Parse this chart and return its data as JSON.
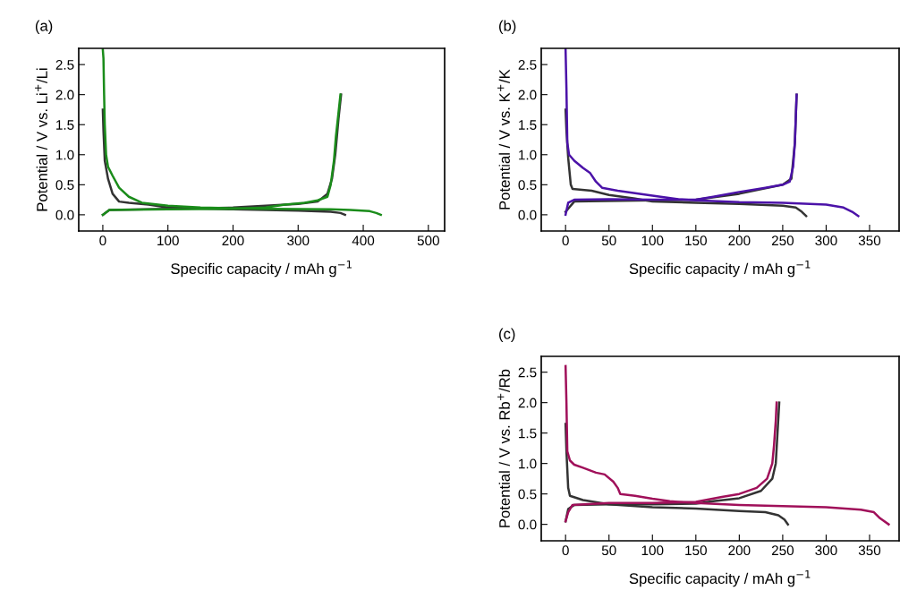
{
  "chart_data": [
    {
      "type": "line",
      "title": "(a)",
      "xlabel": "Specific capacity / mAh g$^{−1}$",
      "ylabel": "Potential / V vs. Li$^{+}$/Li",
      "xlim": [
        -37,
        525
      ],
      "ylim": [
        -0.27,
        2.77
      ],
      "xticks": [
        0,
        100,
        200,
        300,
        400,
        500
      ],
      "yticks": [
        {
          "value": 0,
          "label": "0.0"
        },
        {
          "value": 0.5,
          "label": "0.5"
        },
        {
          "value": 1,
          "label": "1.0"
        },
        {
          "value": 1.5,
          "label": "1.5"
        },
        {
          "value": 2,
          "label": "2.0"
        },
        {
          "value": 2.5,
          "label": "2.5"
        }
      ],
      "grid": false,
      "series": [
        {
          "color": "#333333",
          "x": [
            0,
            1,
            3,
            8,
            15,
            25,
            40,
            70,
            100,
            200,
            300,
            350,
            365,
            372
          ],
          "values": [
            1.75,
            1.4,
            0.9,
            0.6,
            0.35,
            0.22,
            0.2,
            0.17,
            0.12,
            0.09,
            0.07,
            0.05,
            0.03,
            0.0
          ]
        },
        {
          "color": "#333333",
          "x": [
            0,
            10,
            100,
            200,
            300,
            330,
            345,
            352,
            357,
            362,
            366
          ],
          "values": [
            0.0,
            0.08,
            0.1,
            0.12,
            0.18,
            0.22,
            0.35,
            0.6,
            1.0,
            1.6,
            2.0
          ]
        },
        {
          "color": "#1a8c1a",
          "x": [
            0,
            1,
            2,
            3,
            5,
            8,
            15,
            25,
            40,
            60,
            100,
            150,
            250,
            350,
            380,
            410,
            420,
            427
          ],
          "values": [
            2.75,
            2.6,
            2.0,
            1.5,
            1.0,
            0.8,
            0.65,
            0.45,
            0.3,
            0.2,
            0.15,
            0.12,
            0.1,
            0.09,
            0.08,
            0.06,
            0.03,
            0.0
          ]
        },
        {
          "color": "#1a8c1a",
          "x": [
            0,
            10,
            100,
            200,
            250,
            280,
            310,
            330,
            345,
            350,
            355,
            358,
            362,
            365
          ],
          "values": [
            0.0,
            0.08,
            0.09,
            0.1,
            0.12,
            0.17,
            0.2,
            0.24,
            0.3,
            0.5,
            0.9,
            1.3,
            1.7,
            2.0
          ]
        }
      ]
    },
    {
      "type": "line",
      "title": "(b)",
      "xlabel": "Specific capacity / mAh g$^{−1}$",
      "ylabel": "Potential / V vs. K$^{+}$/K",
      "xlim": [
        -28,
        384
      ],
      "ylim": [
        -0.27,
        2.77
      ],
      "xticks": [
        0,
        50,
        100,
        150,
        200,
        250,
        300,
        350
      ],
      "yticks": [
        {
          "value": 0,
          "label": "0.0"
        },
        {
          "value": 0.5,
          "label": "0.5"
        },
        {
          "value": 1,
          "label": "1.0"
        },
        {
          "value": 1.5,
          "label": "1.5"
        },
        {
          "value": 2,
          "label": "2.0"
        },
        {
          "value": 2.5,
          "label": "2.5"
        }
      ],
      "grid": false,
      "series": [
        {
          "color": "#333333",
          "x": [
            0,
            1,
            3,
            6,
            8,
            30,
            50,
            80,
            100,
            150,
            200,
            250,
            265,
            272,
            277
          ],
          "values": [
            1.75,
            1.4,
            0.95,
            0.5,
            0.43,
            0.4,
            0.33,
            0.27,
            0.22,
            0.2,
            0.18,
            0.15,
            0.12,
            0.05,
            -0.02
          ]
        },
        {
          "color": "#333333",
          "x": [
            0,
            10,
            100,
            150,
            200,
            250,
            260,
            264,
            266
          ],
          "values": [
            0.05,
            0.22,
            0.24,
            0.25,
            0.35,
            0.5,
            0.6,
            1.2,
            2.0
          ]
        },
        {
          "color": "#4b12a8",
          "x": [
            0,
            1,
            2,
            4,
            10,
            20,
            28,
            35,
            42,
            60,
            100,
            130,
            150,
            200,
            250,
            300,
            320,
            330,
            337
          ],
          "values": [
            2.75,
            2.1,
            1.2,
            1.0,
            0.9,
            0.78,
            0.7,
            0.55,
            0.45,
            0.4,
            0.32,
            0.26,
            0.24,
            0.21,
            0.2,
            0.17,
            0.12,
            0.05,
            -0.02
          ]
        },
        {
          "color": "#4b12a8",
          "x": [
            0,
            3,
            10,
            50,
            100,
            150,
            170,
            200,
            230,
            250,
            258,
            262,
            264,
            265,
            266
          ],
          "values": [
            0.0,
            0.2,
            0.25,
            0.26,
            0.25,
            0.25,
            0.3,
            0.38,
            0.45,
            0.5,
            0.55,
            0.8,
            1.2,
            1.6,
            2.0
          ]
        }
      ]
    },
    {
      "type": "line",
      "title": "(c)",
      "xlabel": "Specific capacity / mAh g$^{−1}$",
      "ylabel": "Potential / V vs. Rb$^{+}$/Rb",
      "xlim": [
        -28,
        384
      ],
      "ylim": [
        -0.27,
        2.76
      ],
      "xticks": [
        0,
        50,
        100,
        150,
        200,
        250,
        300,
        350
      ],
      "yticks": [
        {
          "value": 0,
          "label": "0.0"
        },
        {
          "value": 0.5,
          "label": "0.5"
        },
        {
          "value": 1,
          "label": "1.0"
        },
        {
          "value": 1.5,
          "label": "1.5"
        },
        {
          "value": 2,
          "label": "2.0"
        },
        {
          "value": 2.5,
          "label": "2.5"
        }
      ],
      "grid": false,
      "series": [
        {
          "color": "#333333",
          "x": [
            0,
            1,
            3,
            5,
            20,
            50,
            100,
            150,
            200,
            230,
            245,
            252,
            256
          ],
          "values": [
            1.65,
            1.2,
            0.6,
            0.47,
            0.4,
            0.33,
            0.28,
            0.26,
            0.22,
            0.2,
            0.15,
            0.08,
            0.0
          ]
        },
        {
          "color": "#333333",
          "x": [
            0,
            3,
            10,
            50,
            100,
            150,
            170,
            200,
            225,
            238,
            242,
            244,
            246
          ],
          "values": [
            0.05,
            0.25,
            0.32,
            0.33,
            0.33,
            0.34,
            0.38,
            0.43,
            0.55,
            0.75,
            1.0,
            1.5,
            2.0
          ]
        },
        {
          "color": "#a0105a",
          "x": [
            0,
            1,
            2,
            5,
            10,
            20,
            35,
            45,
            55,
            60,
            63,
            80,
            100,
            120,
            150,
            200,
            250,
            300,
            340,
            355,
            362,
            372
          ],
          "values": [
            2.6,
            2.0,
            1.2,
            1.05,
            0.98,
            0.93,
            0.85,
            0.82,
            0.7,
            0.6,
            0.5,
            0.47,
            0.42,
            0.38,
            0.35,
            0.32,
            0.3,
            0.28,
            0.24,
            0.2,
            0.1,
            0.0
          ]
        },
        {
          "color": "#a0105a",
          "x": [
            0,
            3,
            8,
            50,
            100,
            150,
            180,
            200,
            220,
            232,
            238,
            240,
            242,
            243
          ],
          "values": [
            0.05,
            0.2,
            0.32,
            0.35,
            0.35,
            0.37,
            0.45,
            0.5,
            0.6,
            0.75,
            1.0,
            1.3,
            1.7,
            2.0
          ]
        }
      ]
    }
  ]
}
